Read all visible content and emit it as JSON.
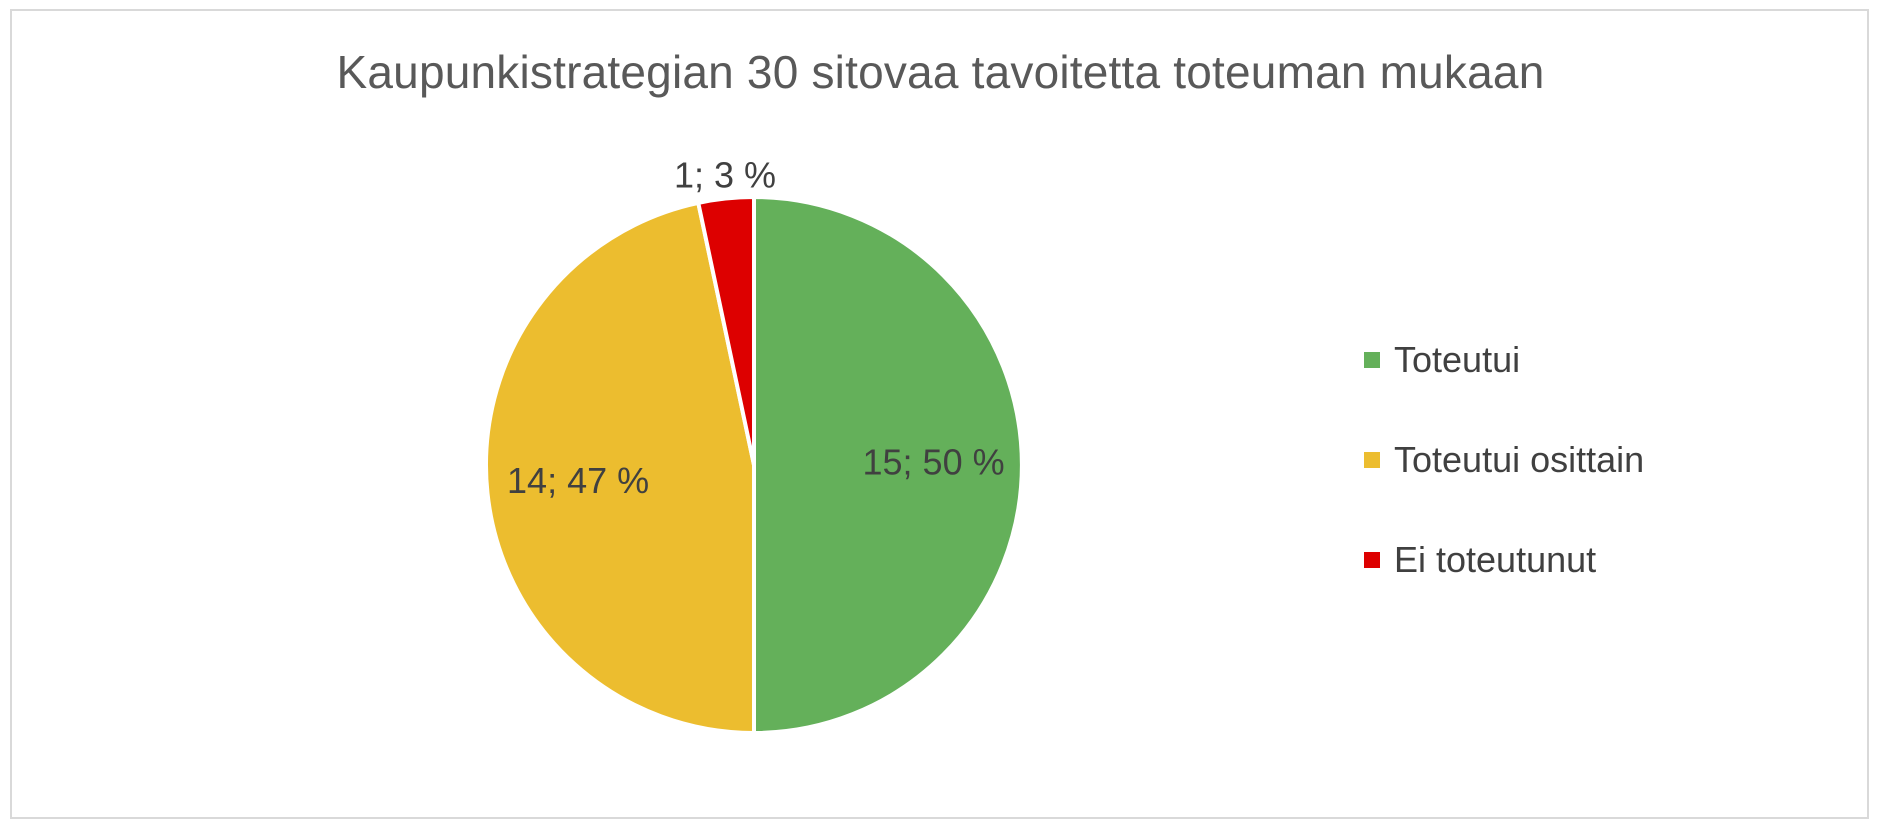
{
  "chart_data": {
    "type": "pie",
    "title": "Kaupunkistrategian 30 sitovaa tavoitetta toteuman mukaan",
    "categories": [
      "Toteutui",
      "Toteutui osittain",
      "Ei toteutunut"
    ],
    "values": [
      15,
      14,
      1
    ],
    "percentages": [
      50,
      47,
      3
    ],
    "data_labels": [
      "15; 50 %",
      "14; 47 %",
      "1; 3 %"
    ],
    "colors": [
      "#64b05a",
      "#ecbd2f",
      "#dd0000"
    ],
    "legend_position": "right"
  }
}
